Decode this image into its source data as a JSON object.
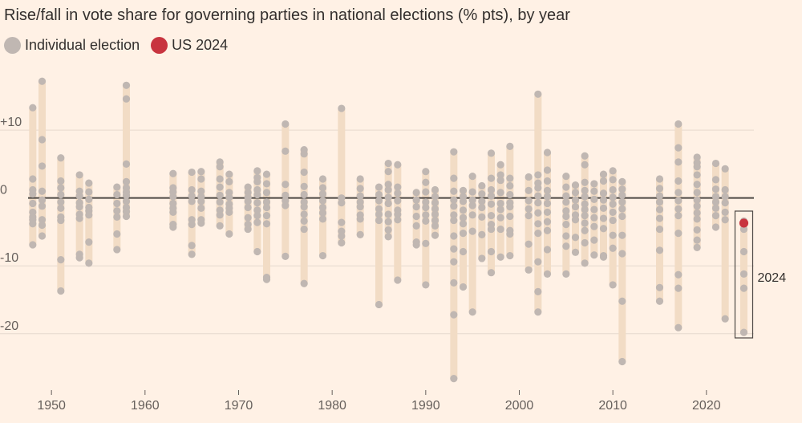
{
  "chart_data": {
    "type": "scatter",
    "title": "Rise/fall in vote share for governing parties in national elections (% pts), by year",
    "legend": [
      {
        "label": "Individual election",
        "color": "#c0b7b2"
      },
      {
        "label": "US 2024",
        "color": "#c8343f"
      }
    ],
    "range_bar_color": "#f2dcc5",
    "xlabel": "",
    "ylabel": "",
    "xlim": [
      1947.5,
      2025.5
    ],
    "ylim": [
      -27,
      19
    ],
    "x_ticks": [
      1950,
      1960,
      1970,
      1980,
      1990,
      2000,
      2010,
      2020
    ],
    "x_tick_labels": [
      "1950",
      "1960",
      "1970",
      "1980",
      "1990",
      "2000",
      "2010",
      "2020"
    ],
    "y_ticks": [
      10,
      0,
      -10,
      -20
    ],
    "y_tick_labels": [
      "+10",
      "0",
      "-10",
      "-20"
    ],
    "annotation": {
      "label": "2024",
      "year": 2024
    },
    "highlight": {
      "label": "US 2024",
      "year": 2024,
      "value": -3.7
    },
    "series": [
      {
        "year": 1948,
        "values": [
          13.3,
          2.8,
          1.2,
          0.6,
          -0.8,
          -2.1,
          -2.8,
          -3.2,
          -3.8,
          -6.9
        ]
      },
      {
        "year": 1949,
        "values": [
          17.2,
          8.6,
          4.7,
          1.0,
          -0.3,
          -1.2,
          -3.2,
          -4.0,
          -5.6
        ]
      },
      {
        "year": 1951,
        "values": [
          5.9,
          2.5,
          1.5,
          0.5,
          -0.6,
          -1.5,
          -2.8,
          -3.3,
          -9.1,
          -13.7
        ]
      },
      {
        "year": 1953,
        "values": [
          3.4,
          1.0,
          0.3,
          -0.7,
          -1.3,
          -2.4,
          -3.0,
          -8.3,
          -8.8
        ]
      },
      {
        "year": 1954,
        "values": [
          2.2,
          0.9,
          -0.2,
          -1.4,
          -1.9,
          -2.5,
          -6.5,
          -9.6
        ]
      },
      {
        "year": 1957,
        "values": [
          1.6,
          0.5,
          -0.8,
          -1.9,
          -2.8,
          -5.3,
          -7.6
        ]
      },
      {
        "year": 1958,
        "values": [
          16.6,
          14.6,
          5.0,
          2.4,
          1.5,
          0.9,
          0.4,
          -0.5,
          -1.4,
          -2.0,
          -2.7
        ]
      },
      {
        "year": 1963,
        "values": [
          3.6,
          1.5,
          0.9,
          0.2,
          -0.8,
          -1.5,
          -2.1,
          -3.9,
          -4.3
        ]
      },
      {
        "year": 1965,
        "values": [
          3.8,
          1.2,
          0.3,
          -0.5,
          -3.2,
          -3.9,
          -7.0,
          -8.3
        ]
      },
      {
        "year": 1966,
        "values": [
          3.9,
          2.8,
          1.0,
          0.2,
          -0.5,
          -1.5,
          -3.2,
          -3.7
        ]
      },
      {
        "year": 1968,
        "values": [
          5.3,
          4.6,
          2.8,
          1.6,
          0.4,
          -0.6,
          -1.8,
          -2.5,
          -4.1
        ]
      },
      {
        "year": 1969,
        "values": [
          3.5,
          2.4,
          0.8,
          0.1,
          -0.9,
          -1.5,
          -2.1,
          -5.3
        ]
      },
      {
        "year": 1971,
        "values": [
          1.6,
          0.8,
          0.1,
          -0.5,
          -1.4,
          -2.9,
          -3.9,
          -4.6
        ]
      },
      {
        "year": 1972,
        "values": [
          4.0,
          3.0,
          2.4,
          1.2,
          0.5,
          -0.7,
          -1.8,
          -2.6,
          -3.6,
          -7.9
        ]
      },
      {
        "year": 1973,
        "values": [
          3.5,
          2.1,
          0.8,
          -0.6,
          -1.4,
          -2.6,
          -3.8,
          -11.7,
          -12.0
        ]
      },
      {
        "year": 1975,
        "values": [
          10.9,
          6.9,
          2.0,
          0.4,
          -0.4,
          -1.1,
          -8.6
        ]
      },
      {
        "year": 1977,
        "values": [
          7.1,
          6.5,
          3.8,
          1.7,
          0.5,
          -0.6,
          -1.3,
          -2.4,
          -3.4,
          -4.6,
          -12.6
        ]
      },
      {
        "year": 1979,
        "values": [
          2.8,
          1.5,
          0.6,
          -0.4,
          -1.4,
          -2.2,
          -3.1,
          -8.5
        ]
      },
      {
        "year": 1981,
        "values": [
          13.2,
          0.0,
          -0.7,
          -3.6,
          -4.9,
          -5.6,
          -6.6
        ]
      },
      {
        "year": 1983,
        "values": [
          2.8,
          1.4,
          0.3,
          -0.6,
          -1.3,
          -2.5,
          -3.1,
          -5.4
        ]
      },
      {
        "year": 1985,
        "values": [
          1.6,
          0.5,
          -0.4,
          -1.6,
          -2.4,
          -3.3,
          -15.7
        ]
      },
      {
        "year": 1986,
        "values": [
          5.1,
          3.9,
          2.0,
          1.2,
          0.1,
          -0.8,
          -2.4,
          -3.5,
          -4.7,
          -5.7
        ]
      },
      {
        "year": 1987,
        "values": [
          4.9,
          1.6,
          0.7,
          -0.4,
          -1.8,
          -2.4,
          -3.2,
          -12.1
        ]
      },
      {
        "year": 1989,
        "values": [
          0.8,
          -0.3,
          -1.3,
          -2.7,
          -4.1,
          -6.5,
          -6.9
        ]
      },
      {
        "year": 1990,
        "values": [
          3.9,
          2.3,
          0.9,
          -0.6,
          -1.4,
          -2.5,
          -3.4,
          -6.7,
          -12.8
        ]
      },
      {
        "year": 1991,
        "values": [
          1.2,
          0.2,
          -0.7,
          -1.6,
          -2.4,
          -3.3,
          -4.1,
          -5.5
        ]
      },
      {
        "year": 1993,
        "values": [
          6.8,
          2.9,
          1.0,
          -0.3,
          -1.2,
          -2.5,
          -3.3,
          -5.6,
          -7.5,
          -9.4,
          -12.5,
          -17.2,
          -26.6
        ]
      },
      {
        "year": 1994,
        "values": [
          1.1,
          0.2,
          -0.5,
          -1.8,
          -2.9,
          -3.8,
          -5.2,
          -7.9,
          -13.1
        ]
      },
      {
        "year": 1995,
        "values": [
          3.2,
          0.9,
          -0.3,
          -1.1,
          -2.5,
          -4.9,
          -16.8
        ]
      },
      {
        "year": 1996,
        "values": [
          1.8,
          0.6,
          -0.5,
          -1.4,
          -2.8,
          -5.4,
          -8.9
        ]
      },
      {
        "year": 1997,
        "values": [
          6.6,
          2.9,
          1.2,
          0.3,
          -0.9,
          -2.6,
          -3.9,
          -4.6,
          -7.9,
          -11.0
        ]
      },
      {
        "year": 1998,
        "values": [
          4.9,
          3.4,
          2.6,
          0.8,
          -0.8,
          -1.7,
          -2.9,
          -4.6,
          -8.7
        ]
      },
      {
        "year": 1999,
        "values": [
          7.6,
          2.9,
          1.8,
          0.5,
          -0.7,
          -1.3,
          -2.7,
          -4.8,
          -5.3,
          -8.5
        ]
      },
      {
        "year": 2001,
        "values": [
          3.1,
          1.1,
          -0.4,
          -1.6,
          -2.6,
          -6.8,
          -10.6
        ]
      },
      {
        "year": 2002,
        "values": [
          15.3,
          3.4,
          2.2,
          1.5,
          0.3,
          -0.7,
          -2.2,
          -3.8,
          -5.2,
          -9.4,
          -13.8,
          -16.8
        ]
      },
      {
        "year": 2003,
        "values": [
          6.7,
          4.1,
          2.5,
          1.1,
          0.2,
          -0.8,
          -2.1,
          -3.5,
          -4.8,
          -7.6,
          -11.2
        ]
      },
      {
        "year": 2005,
        "values": [
          3.2,
          1.6,
          0.3,
          -0.6,
          -1.9,
          -2.7,
          -3.9,
          -5.6,
          -7.1,
          -11.2
        ]
      },
      {
        "year": 2006,
        "values": [
          1.9,
          0.8,
          -0.3,
          -1.3,
          -2.5,
          -3.2,
          -5.8,
          -8.0
        ]
      },
      {
        "year": 2007,
        "values": [
          6.2,
          4.9,
          2.3,
          1.1,
          0.2,
          -0.9,
          -1.7,
          -2.6,
          -3.7,
          -4.8,
          -6.6,
          -9.6
        ]
      },
      {
        "year": 2008,
        "values": [
          2.1,
          1.0,
          -0.2,
          -1.7,
          -2.9,
          -4.2,
          -6.2,
          -8.4
        ]
      },
      {
        "year": 2009,
        "values": [
          3.5,
          2.5,
          0.7,
          -0.3,
          -1.5,
          -3.0,
          -4.5,
          -8.5,
          -8.7
        ]
      },
      {
        "year": 2010,
        "values": [
          4.0,
          2.7,
          1.2,
          0.1,
          -0.9,
          -2.1,
          -3.3,
          -5.5,
          -7.4,
          -12.8
        ]
      },
      {
        "year": 2011,
        "values": [
          2.4,
          1.3,
          0.4,
          -0.6,
          -1.6,
          -2.7,
          -5.5,
          -8.2,
          -15.2,
          -24.1
        ]
      },
      {
        "year": 2015,
        "values": [
          2.8,
          1.4,
          0.3,
          -0.6,
          -1.7,
          -3.0,
          -4.6,
          -7.7,
          -13.2,
          -15.2
        ]
      },
      {
        "year": 2017,
        "values": [
          10.9,
          7.4,
          5.3,
          2.5,
          0.8,
          -0.4,
          -1.6,
          -2.6,
          -5.2,
          -11.3,
          -13.3,
          -19.1
        ]
      },
      {
        "year": 2019,
        "values": [
          6.0,
          5.2,
          4.6,
          3.4,
          2.0,
          0.8,
          -0.3,
          -1.2,
          -2.2,
          -3.1,
          -4.7,
          -6.2,
          -7.3
        ]
      },
      {
        "year": 2021,
        "values": [
          5.1,
          2.7,
          1.3,
          0.2,
          -0.6,
          -1.5,
          -2.6,
          -4.3
        ]
      },
      {
        "year": 2022,
        "values": [
          4.3,
          1.2,
          0.2,
          -0.7,
          -2.1,
          -3.2,
          -17.8
        ]
      },
      {
        "year": 2024,
        "values": [
          -3.4,
          -4.6,
          -7.9,
          -11.2,
          -13.3,
          -19.8
        ]
      }
    ]
  }
}
